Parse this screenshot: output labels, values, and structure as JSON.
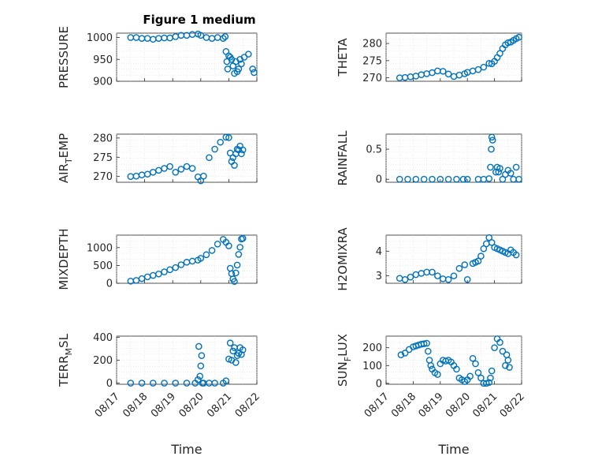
{
  "figure_title": "Figure 1 medium",
  "colors": {
    "series": "#0072BD",
    "axis": "#262626"
  },
  "chart_data": [
    {
      "type": "scatter",
      "ylabel": "PRESSURE",
      "ylim": [
        900,
        1010
      ],
      "yticks": [
        900,
        950,
        1000
      ],
      "xlim": [
        0,
        5
      ],
      "grid": true,
      "x": [
        0.5,
        0.7,
        0.9,
        1.1,
        1.3,
        1.5,
        1.7,
        1.9,
        2.1,
        2.3,
        2.5,
        2.7,
        2.9,
        3.0,
        3.2,
        3.4,
        3.6,
        3.8,
        3.87,
        3.9,
        3.93,
        3.96,
        4.0,
        4.05,
        4.1,
        4.15,
        4.2,
        4.25,
        4.3,
        4.35,
        4.4,
        4.45,
        4.55,
        4.7,
        4.85,
        4.9
      ],
      "y": [
        1000,
        1000,
        998,
        998,
        996,
        998,
        999,
        999,
        1002,
        1005,
        1005,
        1007,
        1008,
        1005,
        1000,
        998,
        1000,
        998,
        1002,
        968,
        945,
        928,
        958,
        955,
        950,
        935,
        918,
        945,
        922,
        928,
        950,
        940,
        955,
        962,
        928,
        920
      ]
    },
    {
      "type": "scatter",
      "ylabel": "THETA",
      "ylim": [
        269,
        283
      ],
      "yticks": [
        270,
        275,
        280
      ],
      "xlim": [
        0,
        5
      ],
      "grid": true,
      "x": [
        0.5,
        0.7,
        0.9,
        1.1,
        1.3,
        1.5,
        1.7,
        1.9,
        2.1,
        2.3,
        2.5,
        2.7,
        2.9,
        3.0,
        3.2,
        3.4,
        3.6,
        3.8,
        3.9,
        4.0,
        4.1,
        4.2,
        4.3,
        4.4,
        4.5,
        4.6,
        4.7,
        4.8,
        4.9
      ],
      "y": [
        270,
        270.1,
        270.3,
        270.5,
        270.9,
        271.2,
        271.5,
        272,
        271.9,
        271.1,
        270.4,
        270.8,
        271.2,
        271.6,
        272,
        272.4,
        273.1,
        274.2,
        274.1,
        274.8,
        275.9,
        277.1,
        278.5,
        279.6,
        280.2,
        280.4,
        280.9,
        281.4,
        281.8
      ]
    },
    {
      "type": "scatter",
      "ylabel": "AIR_TEMP",
      "ylim": [
        268.5,
        281
      ],
      "yticks": [
        270,
        275,
        280
      ],
      "xlim": [
        0,
        5
      ],
      "grid": true,
      "x": [
        0.5,
        0.7,
        0.9,
        1.1,
        1.3,
        1.5,
        1.7,
        1.9,
        2.1,
        2.3,
        2.5,
        2.7,
        2.9,
        3.0,
        3.1,
        3.3,
        3.5,
        3.7,
        3.9,
        4.0,
        4.05,
        4.1,
        4.15,
        4.2,
        4.25,
        4.3,
        4.35,
        4.4,
        4.45,
        4.5
      ],
      "y": [
        270,
        270.1,
        270.4,
        270.6,
        271.1,
        271.6,
        272.1,
        272.6,
        271.1,
        271.9,
        272.6,
        272.1,
        269.9,
        268.9,
        270.1,
        274.9,
        277.1,
        278.9,
        280.2,
        280.1,
        276.1,
        273.9,
        274.9,
        272.9,
        275.9,
        277.1,
        276.9,
        277.9,
        275.9,
        276.9
      ]
    },
    {
      "type": "scatter",
      "ylabel": "RAINFALL",
      "ylim": [
        -0.05,
        0.75
      ],
      "yticks": [
        0,
        0.5
      ],
      "xlim": [
        0,
        5
      ],
      "grid": true,
      "x": [
        0.5,
        0.8,
        1.1,
        1.4,
        1.7,
        2.0,
        2.3,
        2.6,
        2.85,
        3.0,
        3.4,
        3.6,
        3.8,
        3.85,
        3.88,
        3.9,
        3.93,
        4.05,
        4.1,
        4.15,
        4.2,
        4.3,
        4.4,
        4.5,
        4.6,
        4.7,
        4.8,
        4.9
      ],
      "y": [
        0,
        0,
        0,
        0,
        0,
        0,
        0,
        0,
        0,
        0,
        0,
        0,
        0.01,
        0.2,
        0.5,
        0.7,
        0.65,
        0.12,
        0.2,
        0.12,
        0.18,
        0,
        0.08,
        0.15,
        0.1,
        0,
        0.2,
        0
      ]
    },
    {
      "type": "scatter",
      "ylabel": "MIXDEPTH",
      "ylim": [
        0,
        1350
      ],
      "yticks": [
        0,
        500,
        1000
      ],
      "xlim": [
        0,
        5
      ],
      "grid": true,
      "x": [
        0.5,
        0.7,
        0.9,
        1.1,
        1.3,
        1.5,
        1.7,
        1.9,
        2.1,
        2.3,
        2.5,
        2.7,
        2.9,
        3.0,
        3.2,
        3.4,
        3.6,
        3.8,
        3.9,
        4.0,
        4.05,
        4.1,
        4.15,
        4.2,
        4.25,
        4.3,
        4.35,
        4.4,
        4.45,
        4.5
      ],
      "y": [
        60,
        80,
        130,
        180,
        220,
        260,
        320,
        380,
        440,
        520,
        590,
        620,
        650,
        700,
        800,
        920,
        1100,
        1230,
        1150,
        1050,
        420,
        270,
        120,
        50,
        290,
        510,
        810,
        1010,
        1240,
        1260
      ]
    },
    {
      "type": "scatter",
      "ylabel": "H2OMIXRA",
      "ylim": [
        2.7,
        4.65
      ],
      "yticks": [
        3,
        4
      ],
      "xlim": [
        0,
        5
      ],
      "grid": true,
      "x": [
        0.5,
        0.7,
        0.9,
        1.1,
        1.3,
        1.5,
        1.7,
        1.9,
        2.1,
        2.3,
        2.5,
        2.7,
        2.9,
        3.0,
        3.2,
        3.3,
        3.4,
        3.5,
        3.6,
        3.7,
        3.8,
        3.9,
        4.0,
        4.1,
        4.2,
        4.3,
        4.4,
        4.5,
        4.6,
        4.7,
        4.8
      ],
      "y": [
        2.9,
        2.85,
        2.95,
        3.05,
        3.1,
        3.15,
        3.15,
        3.0,
        2.88,
        2.85,
        3.0,
        3.3,
        3.45,
        2.85,
        3.5,
        3.55,
        3.6,
        3.8,
        4.1,
        4.3,
        4.55,
        4.35,
        4.15,
        4.1,
        4.05,
        4.0,
        3.95,
        3.9,
        4.05,
        3.95,
        3.85
      ]
    },
    {
      "type": "scatter",
      "ylabel": "TERR_MSL",
      "ylim": [
        -10,
        410
      ],
      "yticks": [
        0,
        200,
        400
      ],
      "xlim": [
        0,
        5
      ],
      "grid": true,
      "x": [
        0.5,
        0.9,
        1.3,
        1.7,
        2.1,
        2.5,
        2.8,
        2.9,
        2.93,
        2.97,
        3.0,
        3.03,
        3.06,
        3.1,
        3.3,
        3.5,
        3.8,
        3.9,
        4.0,
        4.05,
        4.1,
        4.15,
        4.2,
        4.25,
        4.3,
        4.35,
        4.4,
        4.45,
        4.5
      ],
      "y": [
        0,
        0,
        0,
        0,
        0,
        0,
        0,
        30,
        320,
        60,
        150,
        240,
        0,
        0,
        0,
        0,
        0,
        20,
        210,
        350,
        200,
        280,
        310,
        180,
        240,
        260,
        310,
        250,
        290
      ]
    },
    {
      "type": "scatter",
      "ylabel": "SUN_FLUX",
      "ylim": [
        -5,
        265
      ],
      "yticks": [
        0,
        100,
        200
      ],
      "xlim": [
        0,
        5
      ],
      "grid": true,
      "xticklabels": [
        "08/17",
        "08/18",
        "08/19",
        "08/20",
        "08/21",
        "08/22"
      ],
      "xlabel": "Time",
      "x": [
        0.55,
        0.7,
        0.85,
        1.0,
        1.1,
        1.2,
        1.3,
        1.4,
        1.5,
        1.55,
        1.6,
        1.65,
        1.7,
        1.8,
        1.9,
        2.0,
        2.1,
        2.2,
        2.3,
        2.4,
        2.5,
        2.6,
        2.7,
        2.8,
        2.9,
        3.0,
        3.1,
        3.2,
        3.3,
        3.4,
        3.5,
        3.6,
        3.7,
        3.8,
        3.85,
        3.9,
        4.0,
        4.1,
        4.2,
        4.3,
        4.4,
        4.45,
        4.5,
        4.55
      ],
      "y": [
        160,
        170,
        190,
        205,
        210,
        215,
        220,
        222,
        225,
        180,
        130,
        100,
        80,
        60,
        50,
        110,
        130,
        125,
        130,
        120,
        100,
        80,
        30,
        20,
        10,
        20,
        40,
        140,
        110,
        60,
        30,
        0,
        0,
        5,
        30,
        70,
        200,
        250,
        230,
        180,
        100,
        160,
        130,
        90
      ]
    }
  ],
  "bottom_xlabels": [
    "Time",
    "Time"
  ],
  "bottom_ticklabels": [
    "08/17",
    "08/18",
    "08/19",
    "08/20",
    "08/21",
    "08/22"
  ]
}
